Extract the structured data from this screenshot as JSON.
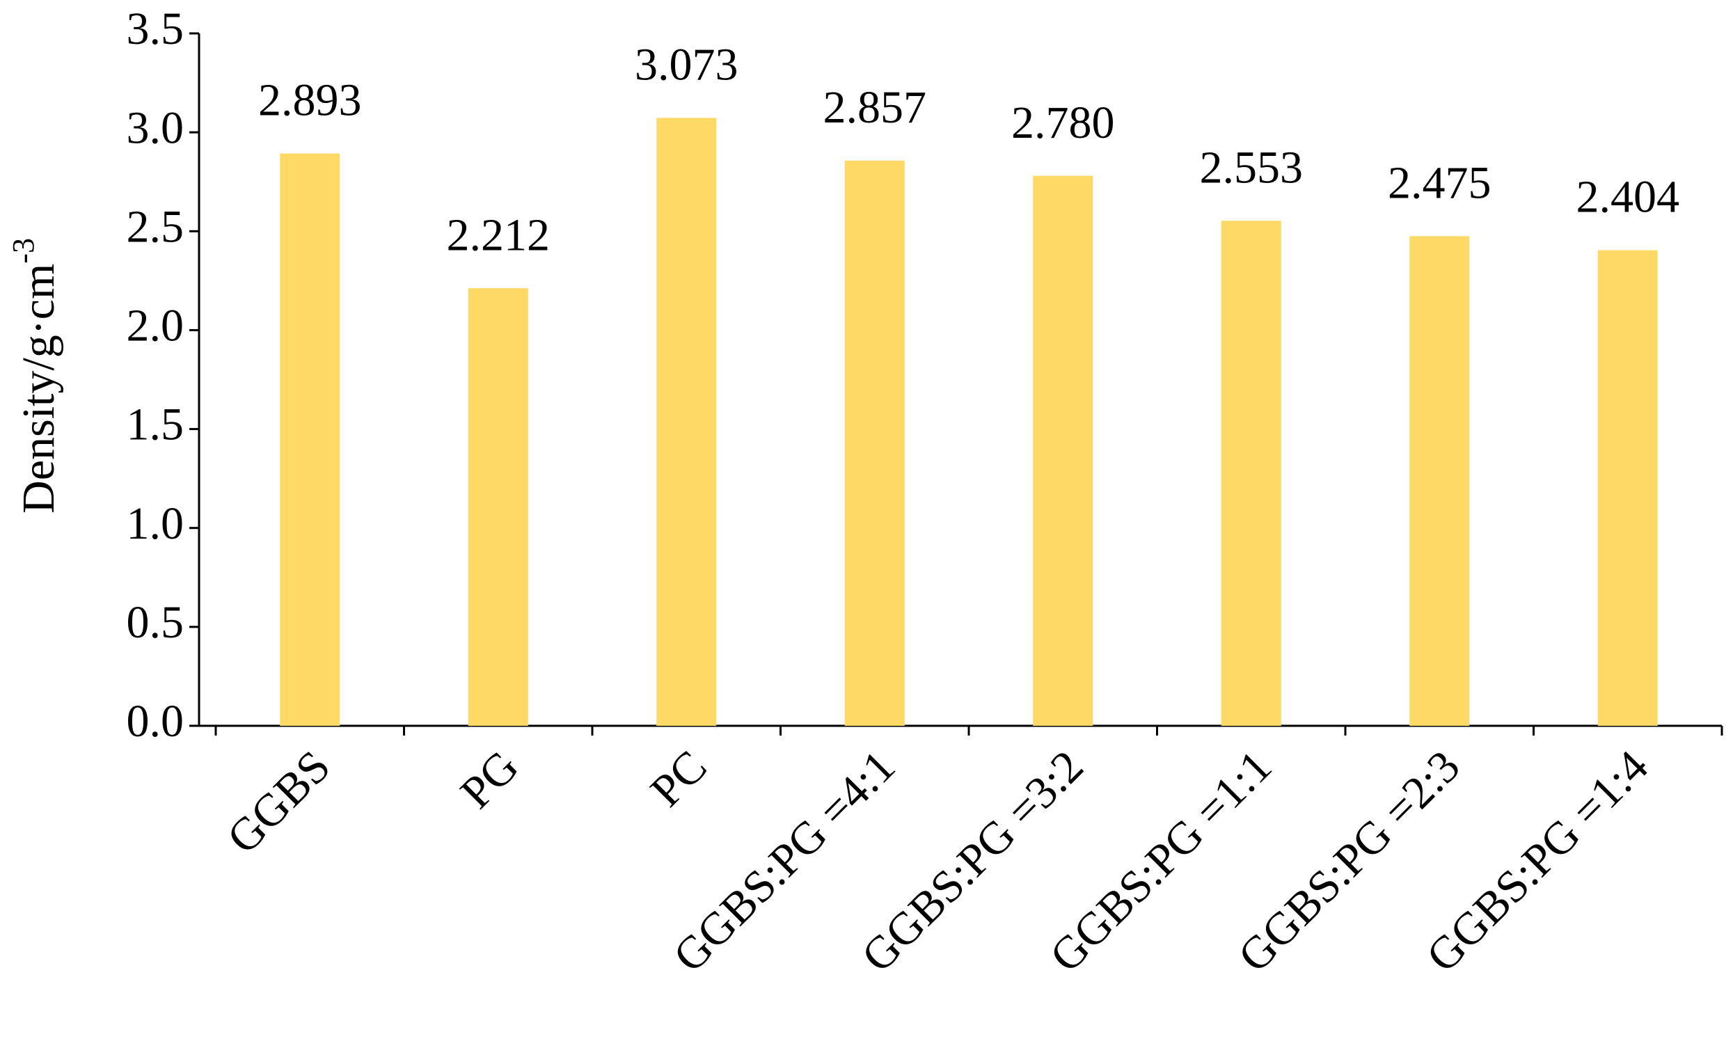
{
  "chart_data": {
    "type": "bar",
    "y_label": "Density/g·cm",
    "y_label_sup": "-3",
    "categories": [
      "GGBS",
      "PG",
      "PC",
      "GGBS:PG =4:1",
      "GGBS:PG =3:2",
      "GGBS:PG =1:1",
      "GGBS:PG =2:3",
      "GGBS:PG =1:4"
    ],
    "values": [
      2.893,
      2.212,
      3.073,
      2.857,
      2.78,
      2.553,
      2.475,
      2.404
    ],
    "value_labels": [
      "2.893",
      "2.212",
      "3.073",
      "2.857",
      "2.780",
      "2.553",
      "2.475",
      "2.404"
    ],
    "color": "#ffd966",
    "ylim": [
      0,
      3.5
    ],
    "yticks": [
      {
        "value": 0,
        "label": "0.0"
      },
      0.5,
      {
        "value": 1,
        "label": "1.0"
      },
      1.5,
      {
        "value": 2,
        "label": "2.0"
      },
      2.5,
      {
        "value": 3,
        "label": "3.0"
      },
      3.5
    ],
    "grid": false
  }
}
